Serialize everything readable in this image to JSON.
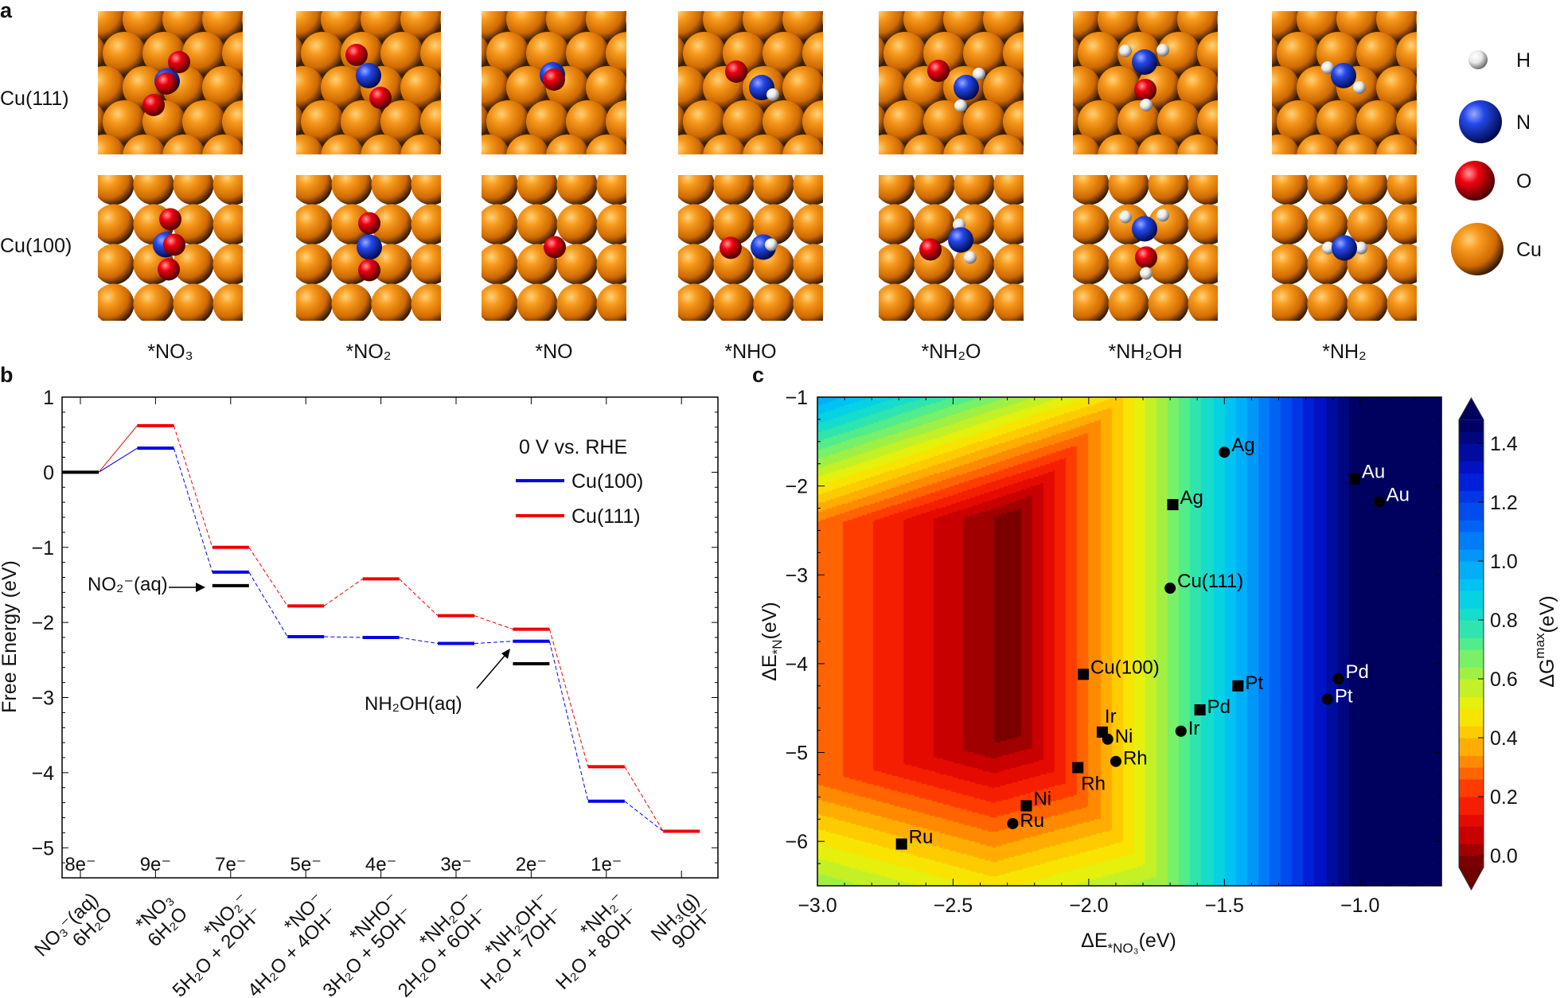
{
  "panel_labels": {
    "a": "a",
    "b": "b",
    "c": "c"
  },
  "panel_a": {
    "rows": [
      "Cu(111)",
      "Cu(100)"
    ],
    "species": [
      "*NO₃",
      "*NO₂",
      "*NO",
      "*NHO",
      "*NH₂O",
      "*NH₂OH",
      "*NH₂"
    ],
    "legend": [
      {
        "label": "H",
        "color": "#ffffff"
      },
      {
        "label": "N",
        "color": "#2040e0"
      },
      {
        "label": "O",
        "color": "#e00010"
      },
      {
        "label": "Cu",
        "color": "#f08a10"
      }
    ]
  },
  "chart_data": [
    {
      "type": "line",
      "subtype": "free energy level diagram",
      "ylabel": "Free Energy (eV)",
      "ylim": [
        -5.4,
        1.0
      ],
      "yticks": [
        1,
        0,
        -1,
        -2,
        -3,
        -4,
        -5
      ],
      "ytick_labels": [
        "1",
        "0",
        "−1",
        "−2",
        "−3",
        "−4",
        "−5"
      ],
      "categories": [
        {
          "l1": "NO₃⁻(aq)",
          "l2": "6H₂O"
        },
        {
          "l1": "*NO₃",
          "l2": "6H₂O"
        },
        {
          "l1": "*NO₂⁻",
          "l2": "5H₂O + 2OH⁻"
        },
        {
          "l1": "*NO⁻",
          "l2": "4H₂O + 4OH⁻"
        },
        {
          "l1": "*NHO⁻",
          "l2": "3H₂O + 5OH⁻"
        },
        {
          "l1": "*NH₂O⁻",
          "l2": "2H₂O + 6OH⁻"
        },
        {
          "l1": "*NH₂OH⁻",
          "l2": "H₂O + 7OH⁻"
        },
        {
          "l1": "*NH₂⁻",
          "l2": "H₂O + 8OH⁻"
        },
        {
          "l1": "NH₃(g)",
          "l2": "9OH⁻"
        }
      ],
      "electrons": [
        "8e⁻",
        "9e⁻",
        "7e⁻",
        "5e⁻",
        "4e⁻",
        "3e⁻",
        "2e⁻",
        "1e⁻"
      ],
      "legend_title": "0 V vs. RHE",
      "legend_position": "top-right",
      "series": [
        {
          "name": "Cu(100)",
          "color": "#0000ee",
          "values": [
            0,
            0.32,
            -1.33,
            -2.19,
            -2.2,
            -2.28,
            -2.25,
            -4.38,
            -4.78
          ]
        },
        {
          "name": "Cu(111)",
          "color": "#ee0000",
          "values": [
            0,
            0.62,
            -1.0,
            -1.78,
            -1.42,
            -1.91,
            -2.09,
            -3.92,
            -4.78
          ]
        }
      ],
      "references": [
        {
          "index": 0,
          "value": 0,
          "label": ""
        },
        {
          "index": 2,
          "value": -1.51,
          "label": "NO₂⁻(aq)"
        },
        {
          "index": 6,
          "value": -2.55,
          "label": "NH₂OH(aq)"
        }
      ]
    },
    {
      "type": "heatmap",
      "subtype": "filled contour with scatter overlay",
      "xlabel": {
        "main": "ΔE",
        "sub": "*NO₃",
        "unit": "(eV)"
      },
      "ylabel": {
        "main": "ΔE",
        "sub": "*N",
        "unit": "(eV)"
      },
      "xlim": [
        -3.0,
        -0.7
      ],
      "ylim": [
        -6.5,
        -1.0
      ],
      "xticks": [
        -3.0,
        -2.5,
        -2.0,
        -1.5,
        -1.0
      ],
      "xtick_labels": [
        "−3.0",
        "−2.5",
        "−2.0",
        "−1.5",
        "−1.0"
      ],
      "yticks": [
        -1,
        -2,
        -3,
        -4,
        -5,
        -6
      ],
      "ytick_labels": [
        "−1",
        "−2",
        "−3",
        "−4",
        "−5",
        "−6"
      ],
      "colorbar": {
        "label": {
          "main": "ΔG",
          "sup": "max",
          "unit": "(eV)"
        },
        "range": [
          -0.04,
          1.48
        ],
        "extend": "both",
        "colormap": "jet (reversed: dark red low, dark blue high)",
        "ticks": [
          0.0,
          0.2,
          0.4,
          0.6,
          0.8,
          1.0,
          1.2,
          1.4
        ],
        "tick_labels": [
          "0.0",
          "0.2",
          "0.4",
          "0.6",
          "0.8",
          "1.0",
          "1.2",
          "1.4"
        ]
      },
      "points": [
        {
          "label": "Ag",
          "marker": "circle",
          "x": -1.5,
          "y": -1.62,
          "label_color": "#000000",
          "label_pos": "right-up"
        },
        {
          "label": "Au",
          "marker": "circle",
          "x": -0.93,
          "y": -2.18,
          "label_color": "#ffffff",
          "label_pos": "right-up"
        },
        {
          "label": "Cu(111)",
          "marker": "circle",
          "x": -1.7,
          "y": -3.15,
          "label_color": "#000000",
          "label_pos": "right-up"
        },
        {
          "label": "Pd",
          "marker": "circle",
          "x": -1.08,
          "y": -4.17,
          "label_color": "#ffffff",
          "label_pos": "right-up"
        },
        {
          "label": "Pt",
          "marker": "circle",
          "x": -1.12,
          "y": -4.4,
          "label_color": "#ffffff",
          "label_pos": "right"
        },
        {
          "label": "Ir",
          "marker": "circle",
          "x": -1.66,
          "y": -4.76,
          "label_color": "#000000",
          "label_pos": "right"
        },
        {
          "label": "Ni",
          "marker": "circle",
          "x": -1.93,
          "y": -4.85,
          "label_color": "#000000",
          "label_pos": "right"
        },
        {
          "label": "Rh",
          "marker": "circle",
          "x": -1.9,
          "y": -5.1,
          "label_color": "#000000",
          "label_pos": "right"
        },
        {
          "label": "Ru",
          "marker": "circle",
          "x": -2.28,
          "y": -5.8,
          "label_color": "#000000",
          "label_pos": "right"
        },
        {
          "label": "Au",
          "marker": "square",
          "x": -1.02,
          "y": -1.92,
          "label_color": "#ffffff",
          "label_pos": "right-up"
        },
        {
          "label": "Ag",
          "marker": "square",
          "x": -1.69,
          "y": -2.21,
          "label_color": "#000000",
          "label_pos": "right-up"
        },
        {
          "label": "Cu(100)",
          "marker": "square",
          "x": -2.02,
          "y": -4.12,
          "label_color": "#000000",
          "label_pos": "right-up"
        },
        {
          "label": "Pt",
          "marker": "square",
          "x": -1.45,
          "y": -4.25,
          "label_color": "#000000",
          "label_pos": "right"
        },
        {
          "label": "Pd",
          "marker": "square",
          "x": -1.59,
          "y": -4.52,
          "label_color": "#000000",
          "label_pos": "right"
        },
        {
          "label": "Ir",
          "marker": "square",
          "x": -1.95,
          "y": -4.77,
          "label_color": "#000000",
          "label_pos": "above"
        },
        {
          "label": "Rh",
          "marker": "square",
          "x": -2.04,
          "y": -5.17,
          "label_color": "#000000",
          "label_pos": "below-right"
        },
        {
          "label": "Ni",
          "marker": "square",
          "x": -2.23,
          "y": -5.6,
          "label_color": "#000000",
          "label_pos": "right-up"
        },
        {
          "label": "Ru",
          "marker": "square",
          "x": -2.69,
          "y": -6.03,
          "label_color": "#000000",
          "label_pos": "right-up"
        }
      ]
    }
  ]
}
